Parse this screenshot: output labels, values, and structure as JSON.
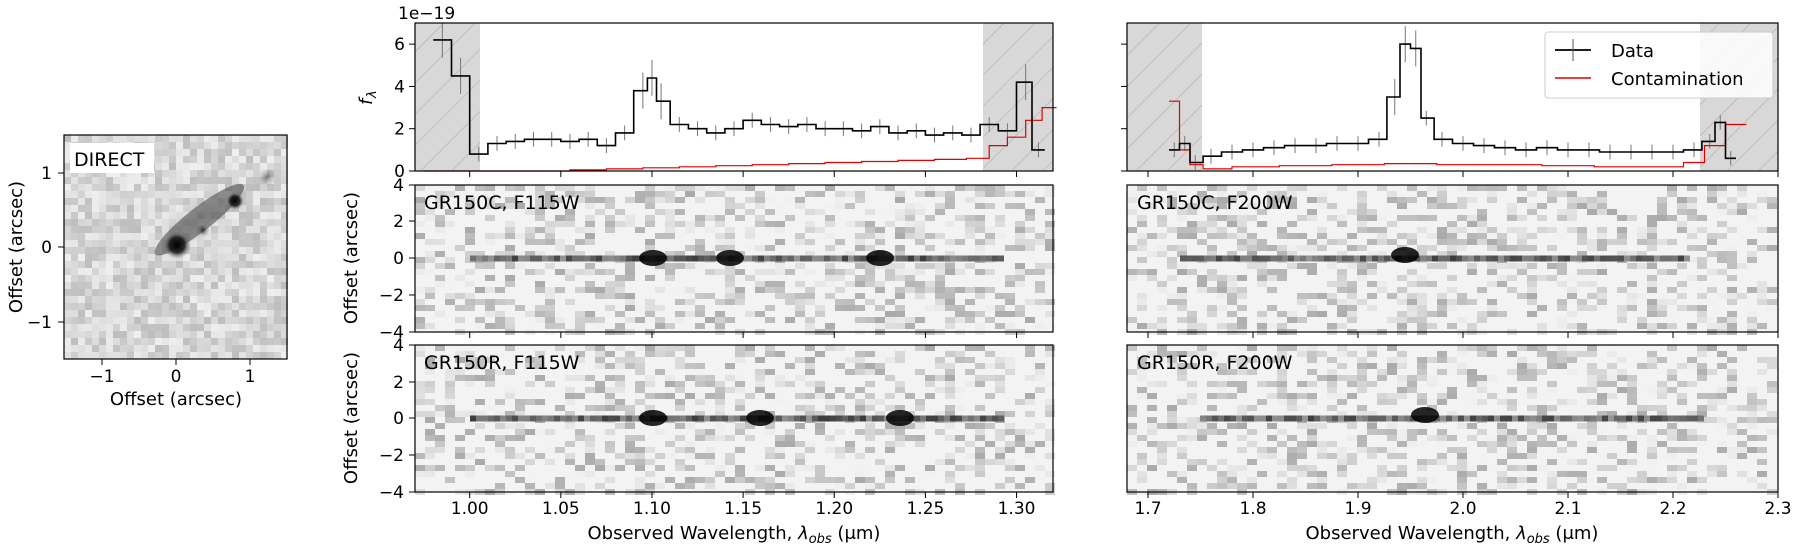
{
  "direct": {
    "label": "DIRECT",
    "xlabel": "Offset (arcsec)",
    "ylabel": "Offset (arcsec)",
    "xticks": [
      "−1",
      "0",
      "1"
    ],
    "yticks": [
      "1",
      "0",
      "−1"
    ]
  },
  "spectra": {
    "ylabel": "fλ",
    "ylabel_main": "f",
    "ylabel_sub": "λ",
    "offset_text": "1e−19",
    "yticks": [
      "0",
      "2",
      "4",
      "6"
    ],
    "legend": {
      "data": "Data",
      "contamination": "Contamination"
    }
  },
  "twod": {
    "ylabel": "Offset (arcsec)",
    "yticks": [
      "4",
      "2",
      "0",
      "−2",
      "−4"
    ],
    "panels": [
      "GR150C, F115W",
      "GR150C, F200W",
      "GR150R, F115W",
      "GR150R, F200W"
    ]
  },
  "xaxis": {
    "label_main": "Observed Wavelength, ",
    "label_sym": "λ",
    "label_sub": "obs",
    "label_unit": " (μm)",
    "ticks_left": [
      "1.00",
      "1.05",
      "1.10",
      "1.15",
      "1.20",
      "1.25",
      "1.30"
    ],
    "ticks_right": [
      "1.7",
      "1.8",
      "1.9",
      "2.0",
      "2.1",
      "2.2",
      "2.3"
    ]
  },
  "colors": {
    "data": "#000000",
    "contamination": "#e00000",
    "shade": "#d6d6d6"
  },
  "chart_data": [
    {
      "type": "line",
      "title": "",
      "xlabel": "Observed Wavelength, λ_obs (μm)",
      "ylabel": "f_λ",
      "y_scale_factor": "1e-19",
      "xlim": [
        0.97,
        1.32
      ],
      "ylim": [
        0,
        7
      ],
      "masked_ranges": [
        [
          0.97,
          1.01
        ],
        [
          1.285,
          1.32
        ]
      ],
      "series": [
        {
          "name": "Data",
          "x": [
            0.985,
            0.995,
            1.005,
            1.015,
            1.025,
            1.035,
            1.045,
            1.055,
            1.065,
            1.075,
            1.085,
            1.095,
            1.1,
            1.105,
            1.115,
            1.125,
            1.135,
            1.145,
            1.155,
            1.165,
            1.175,
            1.185,
            1.195,
            1.205,
            1.215,
            1.225,
            1.235,
            1.245,
            1.255,
            1.265,
            1.275,
            1.285,
            1.295,
            1.305,
            1.312
          ],
          "y": [
            6.2,
            4.5,
            0.8,
            1.3,
            1.4,
            1.5,
            1.5,
            1.4,
            1.5,
            1.2,
            1.8,
            3.8,
            4.4,
            3.3,
            2.2,
            2.0,
            1.8,
            2.0,
            2.4,
            2.2,
            2.1,
            2.2,
            2.0,
            2.0,
            1.9,
            2.1,
            1.8,
            1.9,
            1.7,
            1.8,
            1.7,
            2.2,
            1.9,
            4.2,
            1.0
          ]
        },
        {
          "name": "Contamination",
          "x": [
            0.985,
            1.005,
            1.025,
            1.045,
            1.065,
            1.085,
            1.105,
            1.125,
            1.145,
            1.165,
            1.185,
            1.205,
            1.225,
            1.245,
            1.265,
            1.28,
            1.29,
            1.3,
            1.31,
            1.318
          ],
          "y": [
            0.0,
            0.0,
            0.0,
            0.0,
            0.05,
            0.1,
            0.15,
            0.2,
            0.25,
            0.3,
            0.35,
            0.4,
            0.45,
            0.5,
            0.55,
            0.6,
            1.2,
            1.6,
            2.4,
            3.0
          ]
        }
      ]
    },
    {
      "type": "line",
      "title": "",
      "xlabel": "Observed Wavelength, λ_obs (μm)",
      "ylabel": "f_λ",
      "y_scale_factor": "1e-19",
      "xlim": [
        1.68,
        2.3
      ],
      "ylim": [
        0,
        7
      ],
      "masked_ranges": [
        [
          1.68,
          1.755
        ],
        [
          2.22,
          2.3
        ]
      ],
      "legend_position": "top-right",
      "series": [
        {
          "name": "Data",
          "x": [
            1.725,
            1.735,
            1.745,
            1.76,
            1.78,
            1.8,
            1.82,
            1.84,
            1.86,
            1.88,
            1.9,
            1.92,
            1.935,
            1.945,
            1.955,
            1.965,
            1.98,
            2.0,
            2.02,
            2.04,
            2.06,
            2.08,
            2.1,
            2.12,
            2.14,
            2.16,
            2.18,
            2.2,
            2.22,
            2.235,
            2.245,
            2.255
          ],
          "y": [
            1.0,
            1.3,
            0.4,
            0.7,
            0.9,
            1.0,
            1.1,
            1.2,
            1.2,
            1.3,
            1.3,
            1.5,
            3.5,
            6.0,
            5.8,
            2.5,
            1.5,
            1.3,
            1.2,
            1.1,
            1.0,
            1.1,
            1.0,
            1.0,
            0.9,
            0.9,
            0.9,
            0.9,
            1.0,
            1.4,
            2.3,
            0.6
          ]
        },
        {
          "name": "Contamination",
          "x": [
            1.725,
            1.735,
            1.745,
            1.76,
            1.8,
            1.85,
            1.9,
            1.95,
            2.0,
            2.05,
            2.1,
            2.15,
            2.2,
            2.22,
            2.24,
            2.26
          ],
          "y": [
            3.3,
            1.0,
            0.3,
            0.1,
            0.2,
            0.25,
            0.3,
            0.35,
            0.3,
            0.3,
            0.25,
            0.2,
            0.2,
            0.4,
            1.2,
            2.2
          ]
        }
      ]
    }
  ]
}
